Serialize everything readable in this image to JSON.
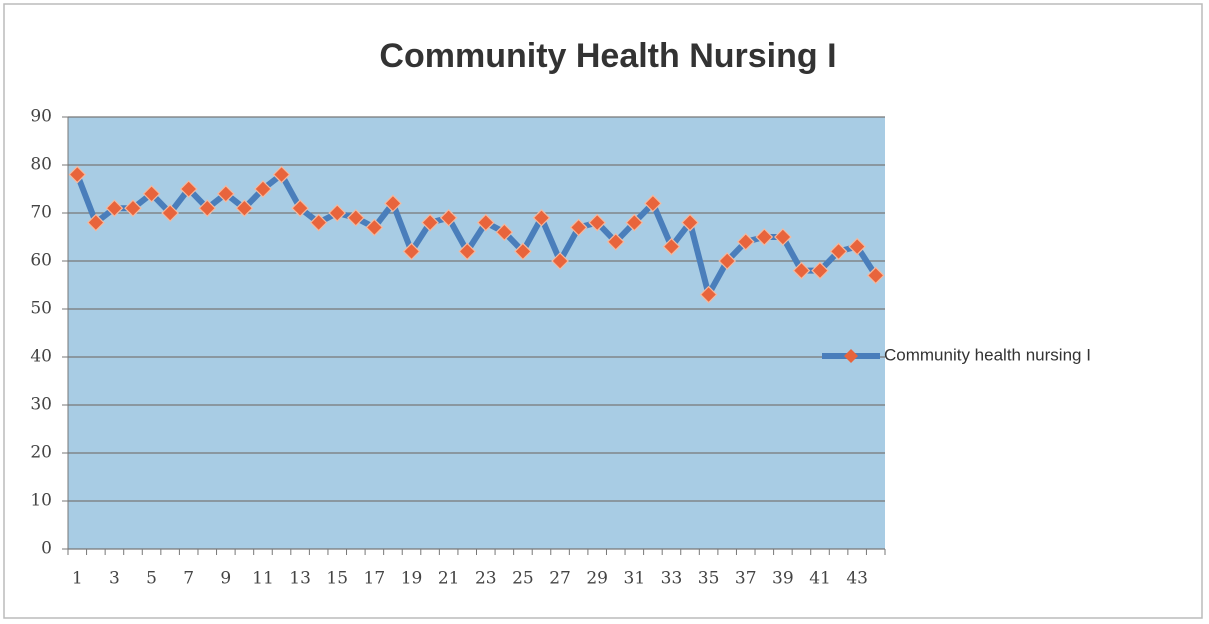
{
  "chart_data": {
    "type": "line",
    "title": "Community Health Nursing I",
    "categories": [
      1,
      null,
      3,
      null,
      5,
      null,
      7,
      null,
      9,
      null,
      11,
      null,
      13,
      null,
      15,
      null,
      17,
      null,
      19,
      null,
      21,
      null,
      23,
      null,
      25,
      null,
      27,
      null,
      29,
      null,
      31,
      null,
      33,
      null,
      35,
      null,
      37,
      null,
      39,
      null,
      41,
      null,
      43,
      null
    ],
    "series": [
      {
        "name": "Community health nursing I",
        "color": "#4a7ebb",
        "marker_color": "#e8643c",
        "values": [
          78,
          68,
          71,
          71,
          74,
          70,
          75,
          71,
          74,
          71,
          75,
          78,
          71,
          68,
          70,
          69,
          67,
          72,
          62,
          68,
          69,
          62,
          68,
          66,
          62,
          69,
          60,
          67,
          68,
          64,
          68,
          72,
          63,
          68,
          53,
          60,
          64,
          65,
          65,
          58,
          58,
          62,
          63,
          57
        ]
      }
    ],
    "ylim": [
      0,
      90
    ],
    "yticks": [
      0,
      10,
      20,
      30,
      40,
      50,
      60,
      70,
      80,
      90
    ],
    "grid": true,
    "legend": "right",
    "plot_background": "#a8cce4"
  }
}
